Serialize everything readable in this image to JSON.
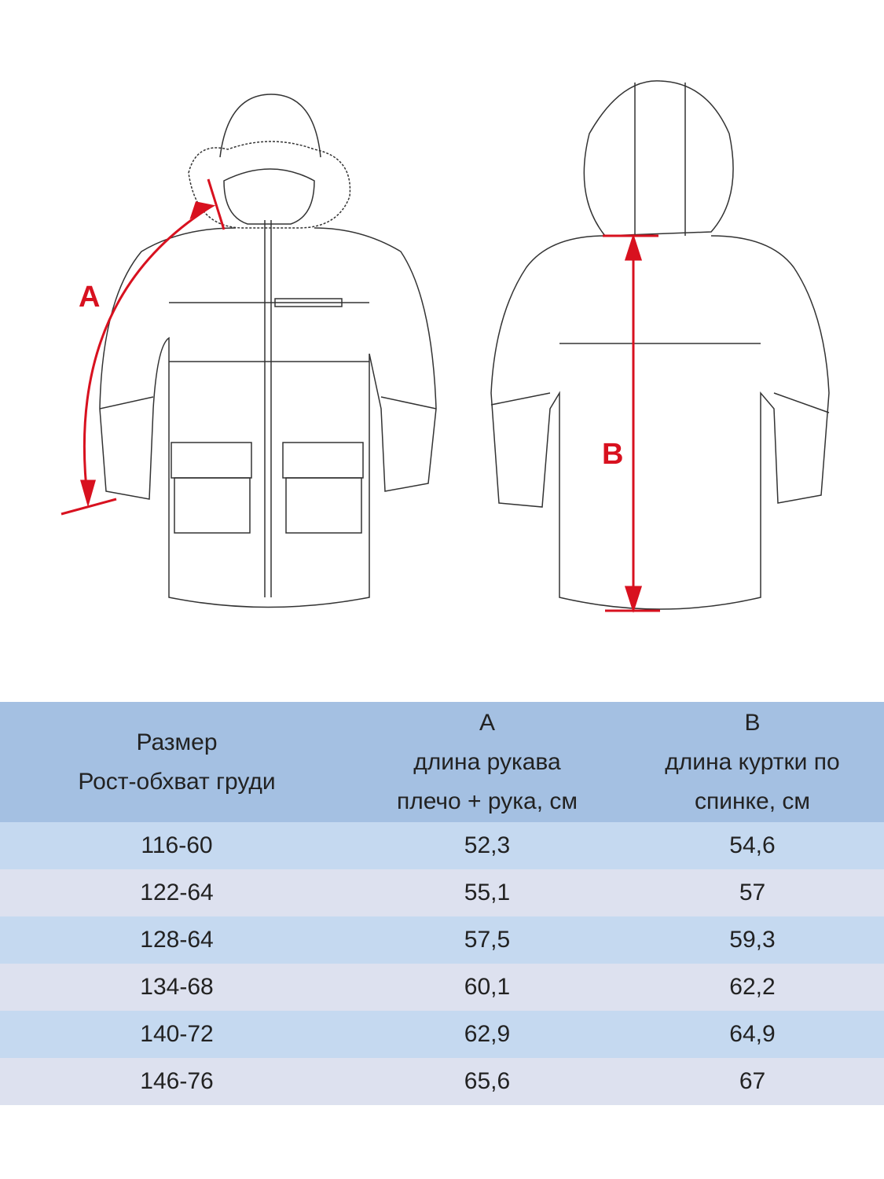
{
  "diagram": {
    "label_a": "A",
    "label_b": "B",
    "accent_color": "#d8111f"
  },
  "table": {
    "header": {
      "size_line1": "Размер",
      "size_line2": "Рост-обхват груди",
      "a_letter": "A",
      "a_line1": "длина рукава",
      "a_line2": "плечо + рука, см",
      "b_letter": "B",
      "b_line1": "длина куртки по",
      "b_line2": "спинке, см"
    },
    "rows": [
      {
        "size": "116-60",
        "a": "52,3",
        "b": "54,6"
      },
      {
        "size": "122-64",
        "a": "55,1",
        "b": "57"
      },
      {
        "size": "128-64",
        "a": "57,5",
        "b": "59,3"
      },
      {
        "size": "134-68",
        "a": "60,1",
        "b": "62,2"
      },
      {
        "size": "140-72",
        "a": "62,9",
        "b": "64,9"
      },
      {
        "size": "146-76",
        "a": "65,6",
        "b": "67"
      }
    ],
    "colors": {
      "header": "#a4c0e2",
      "row_odd": "#c5d9f0",
      "row_even": "#dde1ef"
    }
  }
}
